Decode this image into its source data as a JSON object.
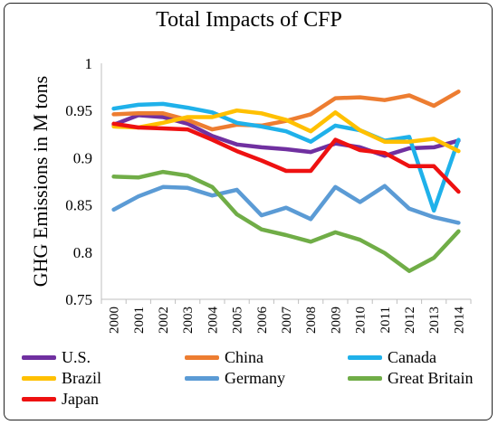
{
  "chart_data": {
    "type": "line",
    "title": "Total Impacts of CFP",
    "ylabel": "GHG Emissions in M tons",
    "xlabel": "",
    "ylim": [
      0.75,
      1
    ],
    "yticks": [
      "0.75",
      "0.8",
      "0.85",
      "0.9",
      "0.95",
      "1"
    ],
    "categories": [
      "2000",
      "2001",
      "2002",
      "2003",
      "2004",
      "2005",
      "2006",
      "2007",
      "2008",
      "2009",
      "2010",
      "2011",
      "2012",
      "2013",
      "2014"
    ],
    "legend_position": "bottom",
    "grid": false,
    "series": [
      {
        "name": "U.S.",
        "color": "#7030a0",
        "values": [
          0.935,
          0.945,
          0.943,
          0.936,
          0.923,
          0.914,
          0.911,
          0.909,
          0.906,
          0.915,
          0.911,
          0.902,
          0.91,
          0.911,
          0.918
        ]
      },
      {
        "name": "China",
        "color": "#ed7d31",
        "values": [
          0.946,
          0.947,
          0.947,
          0.94,
          0.93,
          0.935,
          0.934,
          0.939,
          0.946,
          0.963,
          0.964,
          0.961,
          0.966,
          0.955,
          0.97
        ]
      },
      {
        "name": "Canada",
        "color": "#1fb1ea",
        "values": [
          0.952,
          0.956,
          0.957,
          0.953,
          0.948,
          0.937,
          0.933,
          0.928,
          0.917,
          0.934,
          0.929,
          0.918,
          0.922,
          0.844,
          0.919
        ]
      },
      {
        "name": "Brazil",
        "color": "#ffc000",
        "values": [
          0.933,
          0.932,
          0.937,
          0.943,
          0.943,
          0.95,
          0.947,
          0.94,
          0.928,
          0.948,
          0.929,
          0.917,
          0.917,
          0.92,
          0.907
        ]
      },
      {
        "name": "Germany",
        "color": "#5b9bd5",
        "values": [
          0.845,
          0.859,
          0.869,
          0.868,
          0.86,
          0.866,
          0.839,
          0.847,
          0.835,
          0.869,
          0.853,
          0.87,
          0.846,
          0.837,
          0.831
        ]
      },
      {
        "name": "Great Britain",
        "color": "#70ad47",
        "values": [
          0.88,
          0.879,
          0.885,
          0.881,
          0.869,
          0.84,
          0.824,
          0.818,
          0.811,
          0.821,
          0.813,
          0.799,
          0.78,
          0.794,
          0.822
        ]
      },
      {
        "name": "Japan",
        "color": "#ee1111",
        "values": [
          0.936,
          0.932,
          0.931,
          0.93,
          0.919,
          0.907,
          0.897,
          0.886,
          0.886,
          0.919,
          0.908,
          0.905,
          0.891,
          0.891,
          0.864
        ]
      }
    ]
  }
}
